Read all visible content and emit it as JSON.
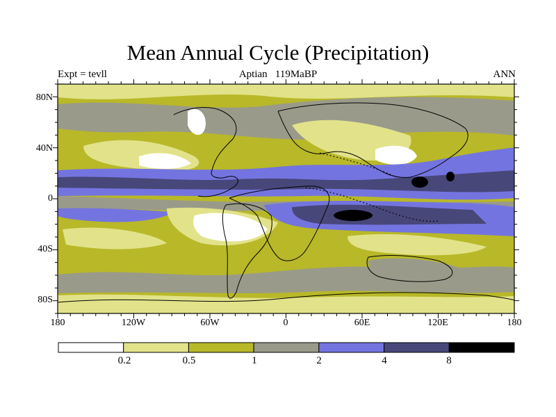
{
  "title": "Mean Annual Cycle (Precipitation)",
  "subtitle_left": "Expt = tevll",
  "subtitle_center": "Aptian   119MaBP",
  "subtitle_right": "ANN",
  "lat_labels": [
    "80N",
    "40N",
    "0",
    "40S",
    "80S"
  ],
  "lon_labels": [
    "180",
    "120W",
    "60W",
    "0",
    "60E",
    "120E",
    "180"
  ],
  "colorbar": {
    "labels": [
      "0.2",
      "0.5",
      "1",
      "2",
      "4",
      "8"
    ],
    "colors": [
      "#ffffff",
      "#e2e28a",
      "#b8b829",
      "#9a9a8a",
      "#7474e0",
      "#47477a",
      "#000000"
    ]
  },
  "map_colors": {
    "ocean_base": "#b8b829",
    "coast": "#000000"
  }
}
